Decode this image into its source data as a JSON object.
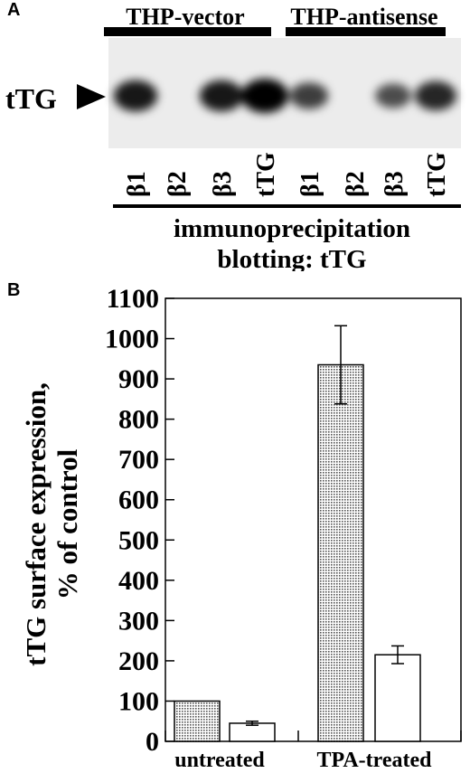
{
  "panel_a": {
    "label": "A",
    "group_labels": [
      "THP-vector",
      "THP-antisense"
    ],
    "band_label": "tTG",
    "lanes": [
      "β1",
      "β2",
      "β3",
      "tTG",
      "β1",
      "β2",
      "β3",
      "tTG"
    ],
    "band_intensity": [
      0.85,
      0.0,
      0.85,
      1.0,
      0.6,
      0.0,
      0.5,
      0.75
    ],
    "caption_line1": "immunoprecipitation",
    "caption_line2": "blotting: tTG"
  },
  "panel_b": {
    "label": "B"
  },
  "chart_data": {
    "type": "bar",
    "ylabel_line1": "tTG surface expression,",
    "ylabel_line2": "% of control",
    "ylim": [
      0,
      1100
    ],
    "yticks": [
      0,
      100,
      200,
      300,
      400,
      500,
      600,
      700,
      800,
      900,
      1000,
      1100
    ],
    "group_labels": [
      "untreated",
      "TPA-treated"
    ],
    "bars": [
      {
        "group": 0,
        "fill": "dotted",
        "value": 100,
        "error": 0
      },
      {
        "group": 0,
        "fill": "white",
        "value": 45,
        "error": 5
      },
      {
        "group": 1,
        "fill": "dotted",
        "value": 935,
        "error": 97
      },
      {
        "group": 1,
        "fill": "white",
        "value": 215,
        "error": 22
      }
    ]
  }
}
